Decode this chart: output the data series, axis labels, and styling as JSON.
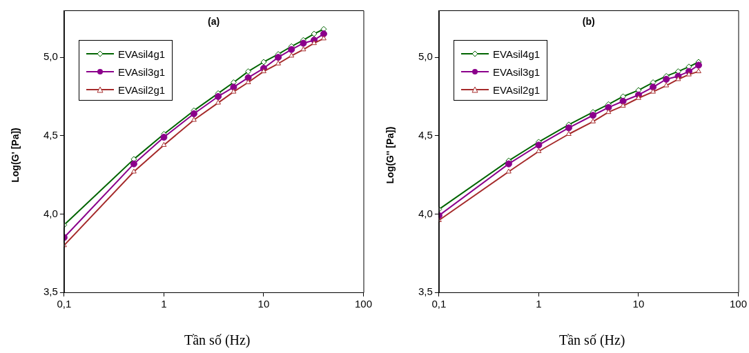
{
  "chart_data": [
    {
      "type": "line",
      "title": "(a)",
      "xlabel": "Tần số (Hz)",
      "ylabel": "Log(G' [Pa])",
      "log": "x",
      "grid": false,
      "legend": "top left",
      "line_style": "solid",
      "x": [
        0.1,
        0.5,
        1,
        2,
        3.5,
        5,
        7,
        10,
        14,
        19,
        25,
        32,
        40
      ],
      "xlim": [
        0.1,
        100
      ],
      "xticks": [
        {
          "value": 0.1,
          "label": "0,1"
        },
        1,
        10,
        100
      ],
      "ylim": [
        3.5,
        5.3
      ],
      "yticks": [
        {
          "value": 3.5,
          "label": "3,5"
        },
        {
          "value": 4,
          "label": "4,0"
        },
        {
          "value": 4.5,
          "label": "4,5"
        },
        {
          "value": 5,
          "label": "5,0"
        }
      ],
      "series": [
        {
          "name": "EVAsil4g1",
          "color": "#006400",
          "marker": "diamond",
          "values": [
            3.93,
            4.35,
            4.51,
            4.66,
            4.77,
            4.84,
            4.91,
            4.97,
            5.02,
            5.07,
            5.11,
            5.15,
            5.18
          ]
        },
        {
          "name": "EVAsil3g1",
          "color": "#8b008b",
          "marker": "circle",
          "values": [
            3.85,
            4.32,
            4.49,
            4.64,
            4.75,
            4.81,
            4.87,
            4.93,
            5.0,
            5.05,
            5.09,
            5.11,
            5.15
          ]
        },
        {
          "name": "EVAsil2g1",
          "color": "#a52a2a",
          "marker": "triangle",
          "values": [
            3.8,
            4.27,
            4.44,
            4.6,
            4.71,
            4.78,
            4.84,
            4.91,
            4.96,
            5.01,
            5.05,
            5.09,
            5.12
          ]
        }
      ]
    },
    {
      "type": "line",
      "title": "(b)",
      "xlabel": "Tần số (Hz)",
      "ylabel": "Log(G'' [Pa])",
      "log": "x",
      "grid": false,
      "legend": "top left",
      "line_style": "solid",
      "x": [
        0.1,
        0.5,
        1,
        2,
        3.5,
        5,
        7,
        10,
        14,
        19,
        25,
        32,
        40
      ],
      "xlim": [
        0.1,
        100
      ],
      "xticks": [
        {
          "value": 0.1,
          "label": "0,1"
        },
        1,
        10,
        100
      ],
      "ylim": [
        3.5,
        5.3
      ],
      "yticks": [
        {
          "value": 3.5,
          "label": "3,5"
        },
        {
          "value": 4,
          "label": "4,0"
        },
        {
          "value": 4.5,
          "label": "4,5"
        },
        {
          "value": 5,
          "label": "5,0"
        }
      ],
      "series": [
        {
          "name": "EVAsil4g1",
          "color": "#006400",
          "marker": "diamond",
          "values": [
            4.03,
            4.34,
            4.46,
            4.57,
            4.65,
            4.7,
            4.75,
            4.79,
            4.84,
            4.88,
            4.91,
            4.94,
            4.97
          ]
        },
        {
          "name": "EVAsil3g1",
          "color": "#8b008b",
          "marker": "circle",
          "values": [
            3.99,
            4.32,
            4.44,
            4.55,
            4.63,
            4.68,
            4.72,
            4.76,
            4.81,
            4.86,
            4.88,
            4.91,
            4.95
          ]
        },
        {
          "name": "EVAsil2g1",
          "color": "#a52a2a",
          "marker": "triangle",
          "values": [
            3.96,
            4.27,
            4.4,
            4.51,
            4.59,
            4.65,
            4.69,
            4.74,
            4.78,
            4.82,
            4.86,
            4.89,
            4.91
          ]
        }
      ]
    }
  ]
}
